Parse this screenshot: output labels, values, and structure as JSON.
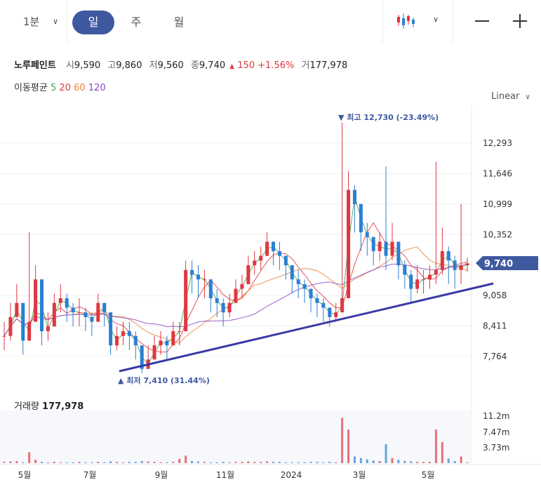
{
  "toolbar": {
    "interval": "1분",
    "periods": [
      "일",
      "주",
      "월"
    ],
    "active_period": "일",
    "chart_type_icon": "candlestick-icon",
    "zoom_out_icon": "minus-icon",
    "zoom_in_icon": "plus-icon"
  },
  "stock": {
    "name": "노루페인트",
    "open_label": "시",
    "open": "9,590",
    "high_label": "고",
    "high": "9,860",
    "low_label": "저",
    "low": "9,560",
    "close_label": "종",
    "close": "9,740",
    "change": "150",
    "change_pct": "+1.56%",
    "volume_label": "거",
    "volume": "177,978"
  },
  "moving_average": {
    "label": "이동평균",
    "periods": [
      {
        "value": "5",
        "color": "#3aa64a"
      },
      {
        "value": "20",
        "color": "#e0373f"
      },
      {
        "value": "60",
        "color": "#e8853a"
      },
      {
        "value": "120",
        "color": "#8a46c8"
      }
    ]
  },
  "scale": "Linear",
  "colors": {
    "up": "#e0373f",
    "down": "#2a7fd4",
    "accent": "#3f59a0",
    "trendline": "#3a3aa6"
  },
  "chart_data": {
    "type": "candlestick",
    "y_ticks": [
      "12,293",
      "11,646",
      "10,999",
      "10,352",
      "9,058",
      "8,411",
      "7,764"
    ],
    "x_ticks": [
      "5월",
      "7월",
      "9월",
      "11월",
      "2024",
      "3월",
      "5월"
    ],
    "current_price": "9,740",
    "high_annotation": "최고 12,730 (-23.49%)",
    "low_annotation": "최저 7,410 (31.44%)",
    "ylim": [
      7300,
      12900
    ],
    "closes": [
      8200,
      8600,
      8900,
      8100,
      8500,
      9400,
      8300,
      8400,
      8900,
      9000,
      8800,
      8700,
      8700,
      8600,
      8500,
      8900,
      8700,
      8000,
      8200,
      8300,
      8200,
      8000,
      7500,
      7700,
      8000,
      8100,
      8000,
      8300,
      8300,
      9600,
      9500,
      9400,
      9400,
      9000,
      8900,
      8700,
      8900,
      9200,
      9300,
      9700,
      9800,
      9900,
      10200,
      10000,
      9900,
      9700,
      9400,
      9300,
      9200,
      9000,
      8900,
      8800,
      8600,
      8700,
      9000,
      11300,
      11000,
      10400,
      10300,
      10000,
      10200,
      9900,
      10200,
      9700,
      9500,
      9200,
      9400,
      9400,
      9500,
      9600,
      10000,
      9800,
      9600,
      9700,
      9740
    ],
    "highs": [
      8500,
      8900,
      9300,
      8400,
      10400,
      9700,
      8700,
      8700,
      9100,
      9300,
      9100,
      8900,
      9000,
      8800,
      8700,
      9100,
      8900,
      8300,
      8400,
      8500,
      8500,
      8300,
      7800,
      8000,
      8200,
      8300,
      8200,
      8500,
      8500,
      9800,
      9800,
      9700,
      9600,
      9300,
      9200,
      9000,
      9100,
      9400,
      9500,
      9900,
      10000,
      10100,
      10400,
      10200,
      10200,
      9900,
      9700,
      9600,
      9400,
      9200,
      9100,
      9000,
      8800,
      8900,
      12730,
      11700,
      11400,
      10800,
      10600,
      10300,
      10400,
      11800,
      10600,
      10100,
      9800,
      9600,
      9700,
      9600,
      9700,
      11900,
      10500,
      10100,
      9900,
      11000,
      9860
    ],
    "lows": [
      7900,
      8100,
      8600,
      7800,
      8200,
      8800,
      8000,
      8100,
      8500,
      8700,
      8500,
      8400,
      8400,
      8300,
      8200,
      8600,
      8400,
      7800,
      7900,
      8000,
      7900,
      7700,
      7410,
      7500,
      7700,
      7800,
      7700,
      8000,
      8000,
      8300,
      9100,
      9000,
      9000,
      8700,
      8600,
      8400,
      8600,
      8900,
      9000,
      9400,
      9500,
      9600,
      9900,
      9700,
      9600,
      9400,
      9100,
      9000,
      8900,
      8700,
      8600,
      8500,
      8400,
      8500,
      8800,
      9600,
      10400,
      10000,
      9900,
      9700,
      9800,
      9600,
      9800,
      9400,
      9200,
      8900,
      9100,
      9100,
      9200,
      9300,
      9500,
      9300,
      9200,
      9300,
      9560
    ],
    "volume_ticks": [
      "11.2m",
      "7.47m",
      "3.73m"
    ],
    "volume_label": "거래량",
    "volume_value": "177,978",
    "volumes": [
      0.3,
      0.4,
      0.5,
      0.2,
      2.6,
      0.8,
      0.3,
      0.2,
      0.3,
      0.2,
      0.2,
      0.2,
      0.3,
      0.2,
      0.2,
      0.3,
      0.2,
      0.4,
      0.3,
      0.2,
      0.3,
      0.3,
      0.5,
      0.4,
      0.3,
      0.2,
      0.2,
      0.3,
      1.0,
      1.8,
      0.5,
      0.4,
      0.3,
      0.2,
      0.2,
      0.3,
      0.2,
      0.3,
      0.3,
      0.4,
      0.3,
      0.3,
      0.4,
      0.3,
      0.3,
      0.2,
      0.2,
      0.2,
      0.2,
      0.3,
      0.3,
      0.2,
      0.3,
      0.2,
      10.8,
      8.0,
      1.6,
      1.2,
      0.9,
      0.6,
      0.5,
      4.5,
      1.2,
      0.8,
      0.5,
      0.4,
      0.3,
      0.3,
      0.3,
      8.0,
      5.0,
      1.1,
      0.5,
      1.6,
      0.18
    ]
  }
}
